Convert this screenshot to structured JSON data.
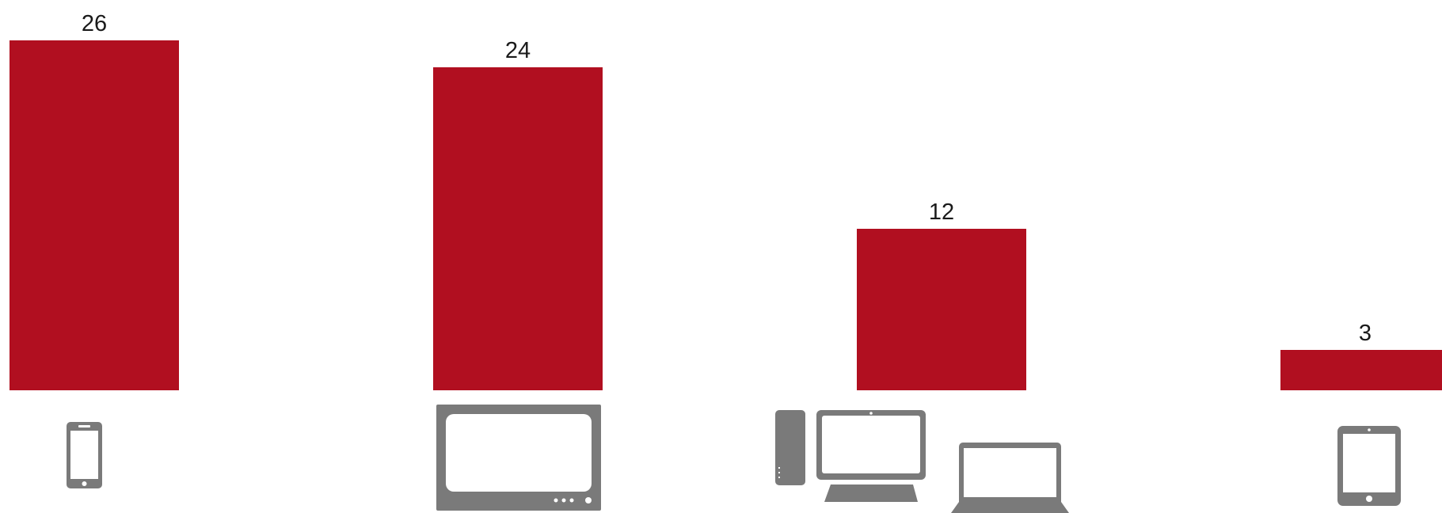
{
  "chart_data": {
    "type": "bar",
    "categories": [
      "smartphone",
      "tv",
      "computer",
      "tablet"
    ],
    "values": [
      26,
      24,
      12,
      3
    ],
    "data_labels": [
      "26",
      "24",
      "12",
      "3"
    ],
    "bar_color": "#b10f20",
    "icon_color": "#7a7a7a",
    "ylim": [
      0,
      26
    ],
    "grid": false,
    "legend": "none"
  }
}
